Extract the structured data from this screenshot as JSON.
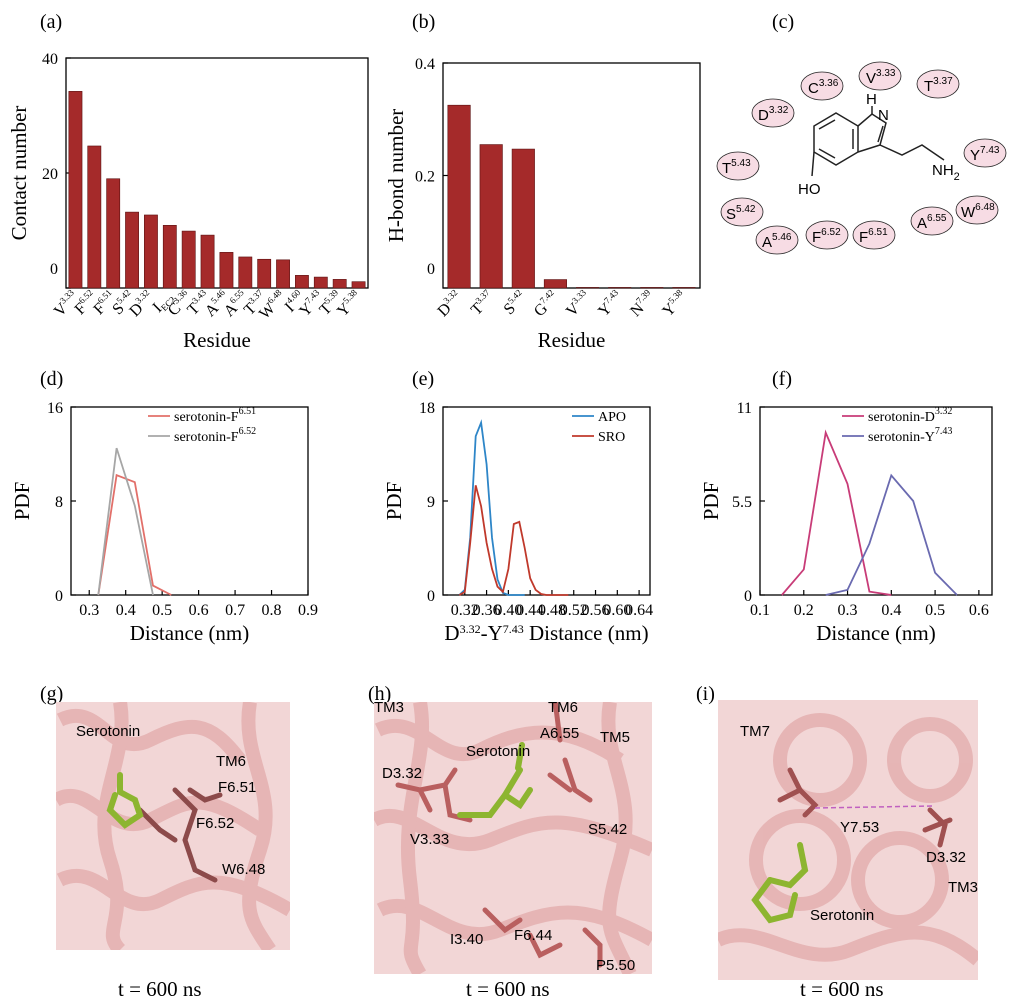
{
  "panels": [
    {
      "id": "a",
      "label": "(a)"
    },
    {
      "id": "b",
      "label": "(b)"
    },
    {
      "id": "c",
      "label": "(c)"
    },
    {
      "id": "d",
      "label": "(d)"
    },
    {
      "id": "e",
      "label": "(e)"
    },
    {
      "id": "f",
      "label": "(f)"
    },
    {
      "id": "g",
      "label": "(g)",
      "caption": "t = 600 ns",
      "labels": [
        "Serotonin",
        "TM6",
        "F6.51",
        "F6.52",
        "W6.48"
      ]
    },
    {
      "id": "h",
      "label": "(h)",
      "caption": "t = 600 ns",
      "labels": [
        "TM3",
        "TM6",
        "TM5",
        "A6.55",
        "Serotonin",
        "D3.32",
        "V3.33",
        "S5.42",
        "I3.40",
        "F6.44",
        "P5.50"
      ]
    },
    {
      "id": "i",
      "label": "(i)",
      "caption": "t = 600 ns",
      "labels": [
        "TM7",
        "Y7.53",
        "D3.32",
        "TM3",
        "Serotonin"
      ]
    }
  ],
  "colors": {
    "bar": "#A52A2A",
    "red_line": "#E2706A",
    "gray_line": "#A6A6A6",
    "blue_line": "#2E86C8",
    "dark_red_line": "#C0392B",
    "magenta_line": "#C83C78",
    "purple_line": "#6A6AB0",
    "bubble_fill": "#F7DCE4"
  },
  "chart_data": [
    {
      "panel": "a",
      "type": "bar",
      "xlabel": "Residue",
      "ylabel": "Contact number",
      "ylim": [
        0,
        40
      ],
      "yticks": [
        "0",
        "20",
        "40"
      ],
      "categories": [
        "V3.33",
        "F6.52",
        "F6.51",
        "S5.42",
        "D3.32",
        "I EC2",
        "C3.36",
        "T3.43",
        "A5.46",
        "A6.55",
        "T3.37",
        "W6.48",
        "I4.60",
        "Y7.43",
        "T5.39",
        "Y5.38"
      ],
      "values": [
        34.2,
        24.7,
        19.0,
        13.2,
        12.7,
        10.9,
        9.9,
        9.2,
        6.2,
        5.4,
        5.0,
        4.9,
        2.2,
        1.9,
        1.5,
        1.1
      ]
    },
    {
      "panel": "b",
      "type": "bar",
      "xlabel": "Residue",
      "ylabel": "H-bond number",
      "ylim": [
        0,
        0.4
      ],
      "yticks": [
        "0",
        "0.2",
        "0.4"
      ],
      "categories": [
        "D3.32",
        "T3.37",
        "S5.42",
        "G7.42",
        "V3.33",
        "Y7.43",
        "N7.39",
        "Y5.38"
      ],
      "values": [
        0.325,
        0.255,
        0.247,
        0.015,
        0.001,
        0.001,
        0.001,
        0.001
      ]
    },
    {
      "panel": "d",
      "type": "line",
      "xlabel": "Distance (nm)",
      "ylabel": "PDF",
      "xlim": [
        0.25,
        0.9
      ],
      "ylim": [
        0,
        16
      ],
      "xticks": [
        "0.3",
        "0.4",
        "0.5",
        "0.6",
        "0.7",
        "0.8",
        "0.9"
      ],
      "yticks": [
        "0",
        "8",
        "16"
      ],
      "series": [
        {
          "name": "serotonin-F6.51",
          "x": [
            0.325,
            0.375,
            0.425,
            0.475,
            0.525
          ],
          "y": [
            0,
            10.2,
            9.6,
            0.8,
            0
          ]
        },
        {
          "name": "serotonin-F6.52",
          "x": [
            0.325,
            0.375,
            0.425,
            0.475
          ],
          "y": [
            0,
            12.5,
            7.6,
            0
          ]
        }
      ]
    },
    {
      "panel": "e",
      "type": "line",
      "xlabel": "D3.32-Y7.43 Distance (nm)",
      "ylabel": "PDF",
      "xlim": [
        0.28,
        0.66
      ],
      "ylim": [
        0,
        18
      ],
      "xticks": [
        "0.32",
        "0.36",
        "0.40",
        "0.44",
        "0.48",
        "0.52",
        "0.56",
        "0.60",
        "0.64"
      ],
      "yticks": [
        "0",
        "9",
        "18"
      ],
      "series": [
        {
          "name": "APO",
          "x": [
            0.31,
            0.32,
            0.33,
            0.34,
            0.35,
            0.36,
            0.37,
            0.38,
            0.39,
            0.4,
            0.41,
            0.42,
            0.43
          ],
          "y": [
            0,
            0.5,
            5.5,
            15.2,
            16.5,
            12.5,
            5.5,
            1.5,
            0.2,
            0,
            0,
            0,
            0
          ]
        },
        {
          "name": "SRO",
          "x": [
            0.31,
            0.32,
            0.33,
            0.34,
            0.35,
            0.36,
            0.37,
            0.38,
            0.39,
            0.4,
            0.41,
            0.42,
            0.43,
            0.44,
            0.45,
            0.46,
            0.47,
            0.48,
            0.49,
            0.5,
            0.51
          ],
          "y": [
            0,
            0.3,
            5,
            10.5,
            8.5,
            5.0,
            2.5,
            0.8,
            0.3,
            2.5,
            6.8,
            7.0,
            4.5,
            1.6,
            0.5,
            0.1,
            0,
            0,
            0,
            0,
            0
          ]
        }
      ]
    },
    {
      "panel": "f",
      "type": "line",
      "xlabel": "Distance (nm)",
      "ylabel": "PDF",
      "xlim": [
        0.1,
        0.63
      ],
      "ylim": [
        0,
        11
      ],
      "xticks": [
        "0.1",
        "0.2",
        "0.3",
        "0.4",
        "0.5",
        "0.6"
      ],
      "yticks": [
        "0",
        "5.5",
        "11"
      ],
      "series": [
        {
          "name": "serotonin-D3.32",
          "x": [
            0.15,
            0.2,
            0.25,
            0.3,
            0.35,
            0.4
          ],
          "y": [
            0,
            1.5,
            9.5,
            6.5,
            0.2,
            0
          ]
        },
        {
          "name": "serotonin-Y7.43",
          "x": [
            0.25,
            0.3,
            0.35,
            0.4,
            0.45,
            0.5,
            0.55
          ],
          "y": [
            0,
            0.3,
            3.0,
            7.0,
            5.5,
            1.3,
            0
          ]
        }
      ]
    }
  ],
  "molecule": {
    "atoms": [
      "H",
      "N",
      "NH",
      "2",
      "HO"
    ],
    "residues": [
      "C",
      "3.36",
      "V",
      "3.33",
      "T",
      "3.37",
      "D",
      "3.32",
      "Y",
      "7.43",
      "T",
      "5.43",
      "S",
      "5.42",
      "A",
      "5.46",
      "F",
      "6.52",
      "F",
      "6.51",
      "A",
      "6.55",
      "W",
      "6.48"
    ]
  }
}
